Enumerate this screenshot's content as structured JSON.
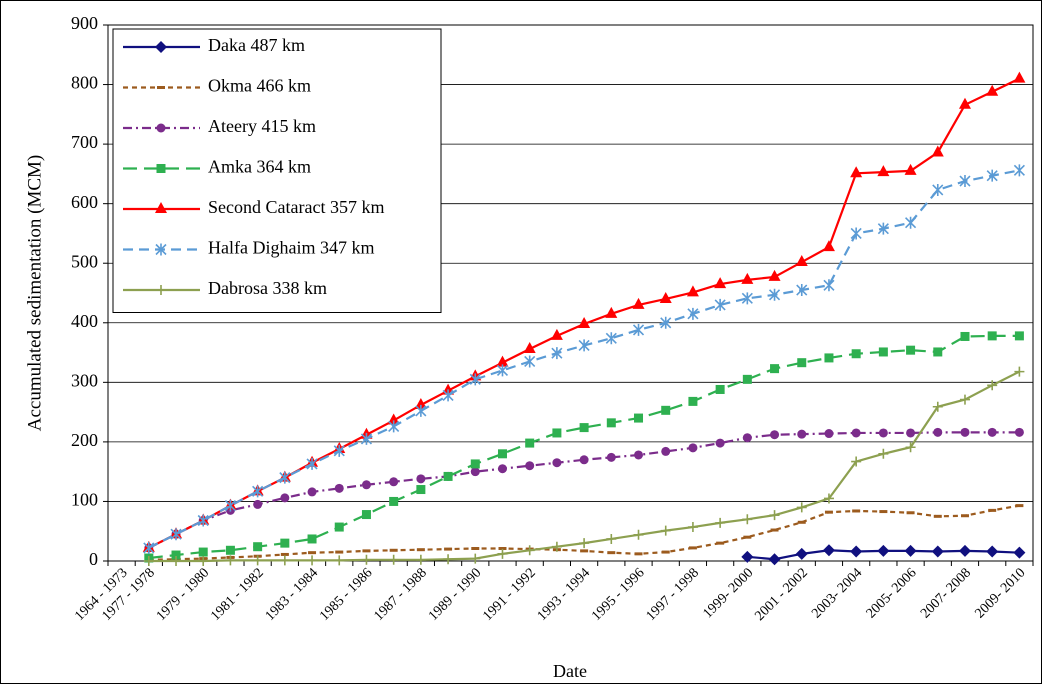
{
  "chart_data": {
    "type": "line",
    "ylabel": "Accumulated sedimentation (MCM)",
    "xlabel": "Date",
    "categories": [
      "1964 - 1973",
      "1977 - 1978",
      null,
      "1979 - 1980",
      null,
      "1981 - 1982",
      null,
      "1983 - 1984",
      null,
      "1985 - 1986",
      null,
      "1987 - 1988",
      null,
      "1989 - 1990",
      null,
      "1991 - 1992",
      null,
      "1993 - 1994",
      null,
      "1995 - 1996",
      null,
      "1997 - 1998",
      null,
      "1999- 2000",
      null,
      "2001 - 2002",
      null,
      "2003- 2004",
      null,
      "2005- 2006",
      null,
      "2007- 2008",
      null,
      "2009- 2010"
    ],
    "ylim": [
      0,
      900
    ],
    "yticks": [
      0,
      100,
      200,
      300,
      400,
      500,
      600,
      700,
      800,
      900
    ],
    "grid": true,
    "legend": "upper left",
    "series": [
      {
        "name": "Daka 487 km",
        "color": "#10107f",
        "marker": "diamond",
        "dash": "solid",
        "values": [
          null,
          null,
          null,
          null,
          null,
          null,
          null,
          null,
          null,
          null,
          null,
          null,
          null,
          null,
          null,
          null,
          null,
          null,
          null,
          null,
          null,
          null,
          null,
          7,
          3,
          12,
          18,
          16,
          17,
          17,
          16,
          17,
          16,
          14
        ]
      },
      {
        "name": "Okma 466 km",
        "color": "#9c5b1e",
        "marker": "dash",
        "dash": "short",
        "values": [
          null,
          2,
          3,
          4,
          6,
          8,
          11,
          14,
          15,
          17,
          18,
          19,
          20,
          21,
          21,
          20,
          19,
          17,
          14,
          12,
          15,
          22,
          30,
          40,
          52,
          65,
          82,
          84,
          83,
          81,
          75,
          76,
          85,
          93
        ]
      },
      {
        "name": "Ateery 415 km",
        "color": "#7b2c8b",
        "marker": "circle",
        "dash": "dashdot",
        "values": [
          null,
          22,
          45,
          68,
          85,
          95,
          106,
          116,
          122,
          128,
          133,
          138,
          142,
          150,
          155,
          160,
          165,
          170,
          174,
          178,
          184,
          190,
          198,
          207,
          212,
          213,
          214,
          215,
          215,
          215,
          216,
          216,
          216,
          216
        ]
      },
      {
        "name": "Amka 364 km",
        "color": "#2eb050",
        "marker": "square",
        "dash": "long",
        "values": [
          null,
          5,
          10,
          15,
          18,
          24,
          30,
          37,
          57,
          78,
          100,
          120,
          142,
          163,
          180,
          198,
          215,
          224,
          232,
          240,
          253,
          268,
          288,
          305,
          323,
          333,
          341,
          348,
          351,
          354,
          351,
          377,
          378,
          378
        ]
      },
      {
        "name": "Second Cataract 357 km",
        "color": "#ff0000",
        "marker": "triangle",
        "dash": "solid",
        "values": [
          null,
          22,
          45,
          68,
          93,
          117,
          140,
          165,
          188,
          212,
          236,
          262,
          286,
          310,
          333,
          356,
          378,
          398,
          415,
          430,
          440,
          451,
          465,
          472,
          477,
          502,
          527,
          651,
          653,
          655,
          686,
          766,
          788,
          810
        ]
      },
      {
        "name": "Halfa Dighaim 347 km",
        "color": "#5b9bd5",
        "marker": "asterisk",
        "dash": "medium",
        "values": [
          null,
          22,
          45,
          68,
          93,
          117,
          140,
          163,
          185,
          205,
          226,
          252,
          278,
          305,
          320,
          335,
          349,
          362,
          374,
          388,
          400,
          415,
          430,
          441,
          447,
          455,
          463,
          550,
          558,
          568,
          623,
          638,
          647,
          656
        ]
      },
      {
        "name": "Dabrosa 338 km",
        "color": "#8da050",
        "marker": "plus",
        "dash": "solid",
        "values": [
          null,
          0,
          0,
          0,
          1,
          1,
          1,
          1,
          1,
          2,
          2,
          2,
          3,
          4,
          12,
          18,
          24,
          30,
          37,
          44,
          51,
          57,
          64,
          70,
          77,
          90,
          105,
          167,
          180,
          191,
          259,
          271,
          295,
          318
        ]
      }
    ]
  }
}
